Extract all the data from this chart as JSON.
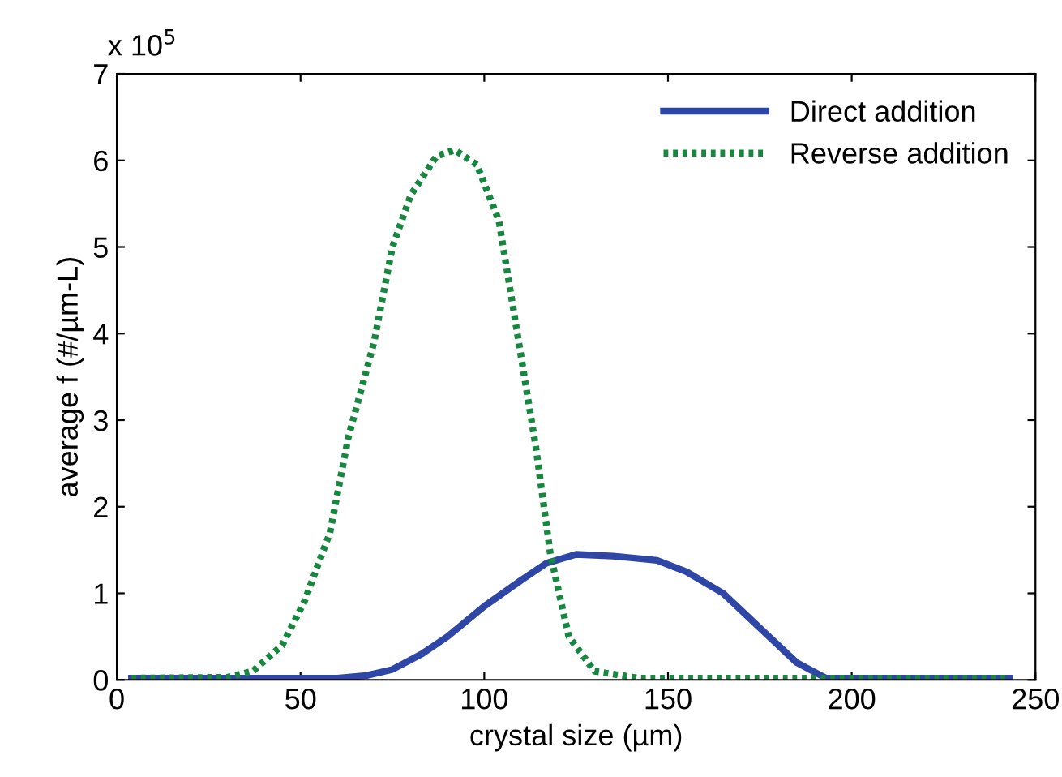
{
  "chart_data": {
    "type": "line",
    "xlabel": "crystal size (µm)",
    "ylabel": "average f (#/µm-L)",
    "annotations": [
      "x 10$^{5}$"
    ],
    "xlim": [
      0,
      250
    ],
    "xticks": [
      0,
      50,
      100,
      150,
      200,
      250
    ],
    "ylim": [
      0,
      7
    ],
    "yticks": [
      0,
      1,
      2,
      3,
      4,
      5,
      6,
      7
    ],
    "grid": false,
    "legend": "top right",
    "series": [
      {
        "name": "Direct addition",
        "color": "#2e46a6",
        "line_style": "solid",
        "x": [
          4,
          30,
          60,
          68,
          75,
          83,
          90,
          100,
          110,
          117,
          125,
          135,
          147,
          155,
          165,
          175,
          185,
          193,
          243
        ],
        "values": [
          0.02,
          0.02,
          0.02,
          0.05,
          0.12,
          0.3,
          0.5,
          0.85,
          1.15,
          1.35,
          1.45,
          1.43,
          1.38,
          1.25,
          1.0,
          0.6,
          0.2,
          0.02,
          0.02
        ]
      },
      {
        "name": "Reverse addition",
        "color": "#17873f",
        "line_style": "dotted",
        "x": [
          4,
          30,
          37,
          45,
          51,
          58,
          63,
          70,
          75,
          80,
          87,
          92,
          98,
          104,
          109,
          114,
          118,
          123,
          130,
          142,
          243
        ],
        "values": [
          0.02,
          0.03,
          0.1,
          0.4,
          0.9,
          1.7,
          2.8,
          3.9,
          5.0,
          5.6,
          6.05,
          6.12,
          5.95,
          5.3,
          4.0,
          2.7,
          1.45,
          0.5,
          0.1,
          0.02,
          0.02
        ]
      }
    ]
  }
}
